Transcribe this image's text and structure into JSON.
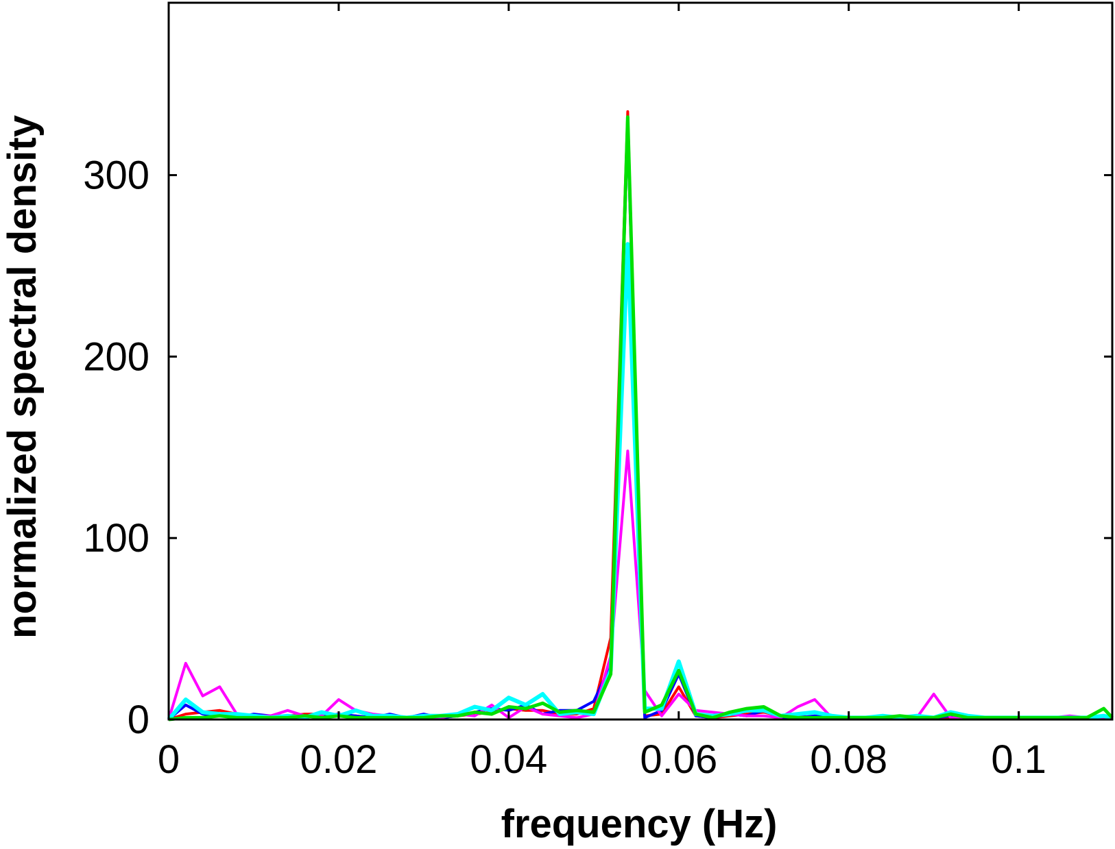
{
  "chart_data": {
    "type": "line",
    "title": "",
    "xlabel": "frequency (Hz)",
    "ylabel": "normalized spectral density",
    "xlim": [
      0,
      0.111
    ],
    "ylim": [
      0,
      395
    ],
    "xticks": [
      0,
      0.02,
      0.04,
      0.06,
      0.08,
      0.1
    ],
    "xtick_labels": [
      "0",
      "0.02",
      "0.04",
      "0.06",
      "0.08",
      "0.1"
    ],
    "yticks": [
      0,
      100,
      200,
      300
    ],
    "ytick_labels": [
      "0",
      "100",
      "200",
      "300"
    ],
    "grid": false,
    "legend": "none",
    "x": [
      0,
      0.002,
      0.004,
      0.006,
      0.008,
      0.01,
      0.012,
      0.014,
      0.016,
      0.018,
      0.02,
      0.022,
      0.024,
      0.026,
      0.028,
      0.03,
      0.032,
      0.034,
      0.036,
      0.038,
      0.04,
      0.042,
      0.044,
      0.046,
      0.048,
      0.05,
      0.052,
      0.054,
      0.056,
      0.058,
      0.06,
      0.062,
      0.064,
      0.066,
      0.068,
      0.07,
      0.072,
      0.074,
      0.076,
      0.078,
      0.08,
      0.082,
      0.084,
      0.086,
      0.088,
      0.09,
      0.092,
      0.094,
      0.096,
      0.098,
      0.1,
      0.102,
      0.104,
      0.106,
      0.108,
      0.11,
      0.111
    ],
    "series": [
      {
        "color": "#ff0000",
        "width": 4,
        "values": [
          0,
          3,
          4,
          5,
          3,
          2,
          2,
          2,
          3,
          3,
          2,
          2,
          1,
          2,
          1,
          2,
          1,
          2,
          3,
          4,
          6,
          5,
          5,
          3,
          3,
          6,
          45,
          335,
          2,
          3,
          18,
          2,
          1,
          2,
          3,
          4,
          2,
          2,
          1,
          1,
          1,
          1,
          1,
          1,
          1,
          1,
          1,
          1,
          1,
          1,
          1,
          1,
          1,
          1,
          1,
          1,
          1
        ]
      },
      {
        "color": "#0000ff",
        "width": 4,
        "values": [
          0,
          8,
          3,
          2,
          1,
          3,
          2,
          1,
          2,
          2,
          3,
          2,
          1,
          3,
          1,
          3,
          1,
          2,
          4,
          6,
          5,
          8,
          3,
          5,
          5,
          10,
          30,
          325,
          1,
          5,
          25,
          2,
          1,
          3,
          2,
          5,
          1,
          1,
          2,
          1,
          1,
          1,
          1,
          1,
          1,
          1,
          2,
          1,
          1,
          1,
          1,
          1,
          1,
          1,
          1,
          1,
          1
        ]
      },
      {
        "color": "#ff00ff",
        "width": 4,
        "values": [
          0,
          31,
          13,
          18,
          3,
          2,
          2,
          5,
          2,
          2,
          11,
          5,
          3,
          2,
          1,
          2,
          1,
          3,
          2,
          8,
          1,
          7,
          3,
          2,
          1,
          3,
          35,
          148,
          16,
          2,
          14,
          5,
          4,
          3,
          2,
          2,
          1,
          7,
          11,
          1,
          1,
          1,
          1,
          1,
          1,
          14,
          1,
          1,
          1,
          1,
          1,
          1,
          1,
          2,
          1,
          1,
          1
        ]
      },
      {
        "color": "#00ffff",
        "width": 6,
        "values": [
          0,
          11,
          4,
          3,
          3,
          2,
          1,
          2,
          1,
          4,
          2,
          5,
          2,
          2,
          1,
          2,
          2,
          3,
          7,
          5,
          12,
          8,
          14,
          3,
          4,
          3,
          27,
          262,
          6,
          6,
          32,
          3,
          2,
          3,
          5,
          5,
          2,
          3,
          4,
          2,
          1,
          1,
          2,
          1,
          2,
          1,
          4,
          2,
          1,
          1,
          1,
          1,
          1,
          1,
          1,
          2,
          1
        ]
      },
      {
        "color": "#00e000",
        "width": 5,
        "values": [
          0,
          1,
          1,
          2,
          1,
          1,
          1,
          1,
          2,
          1,
          2,
          1,
          1,
          1,
          1,
          1,
          2,
          2,
          4,
          3,
          7,
          6,
          9,
          4,
          5,
          4,
          25,
          332,
          4,
          8,
          27,
          3,
          1,
          4,
          6,
          7,
          2,
          1,
          1,
          1,
          1,
          1,
          1,
          2,
          1,
          1,
          3,
          1,
          1,
          1,
          1,
          1,
          1,
          1,
          1,
          6,
          1
        ]
      }
    ]
  }
}
